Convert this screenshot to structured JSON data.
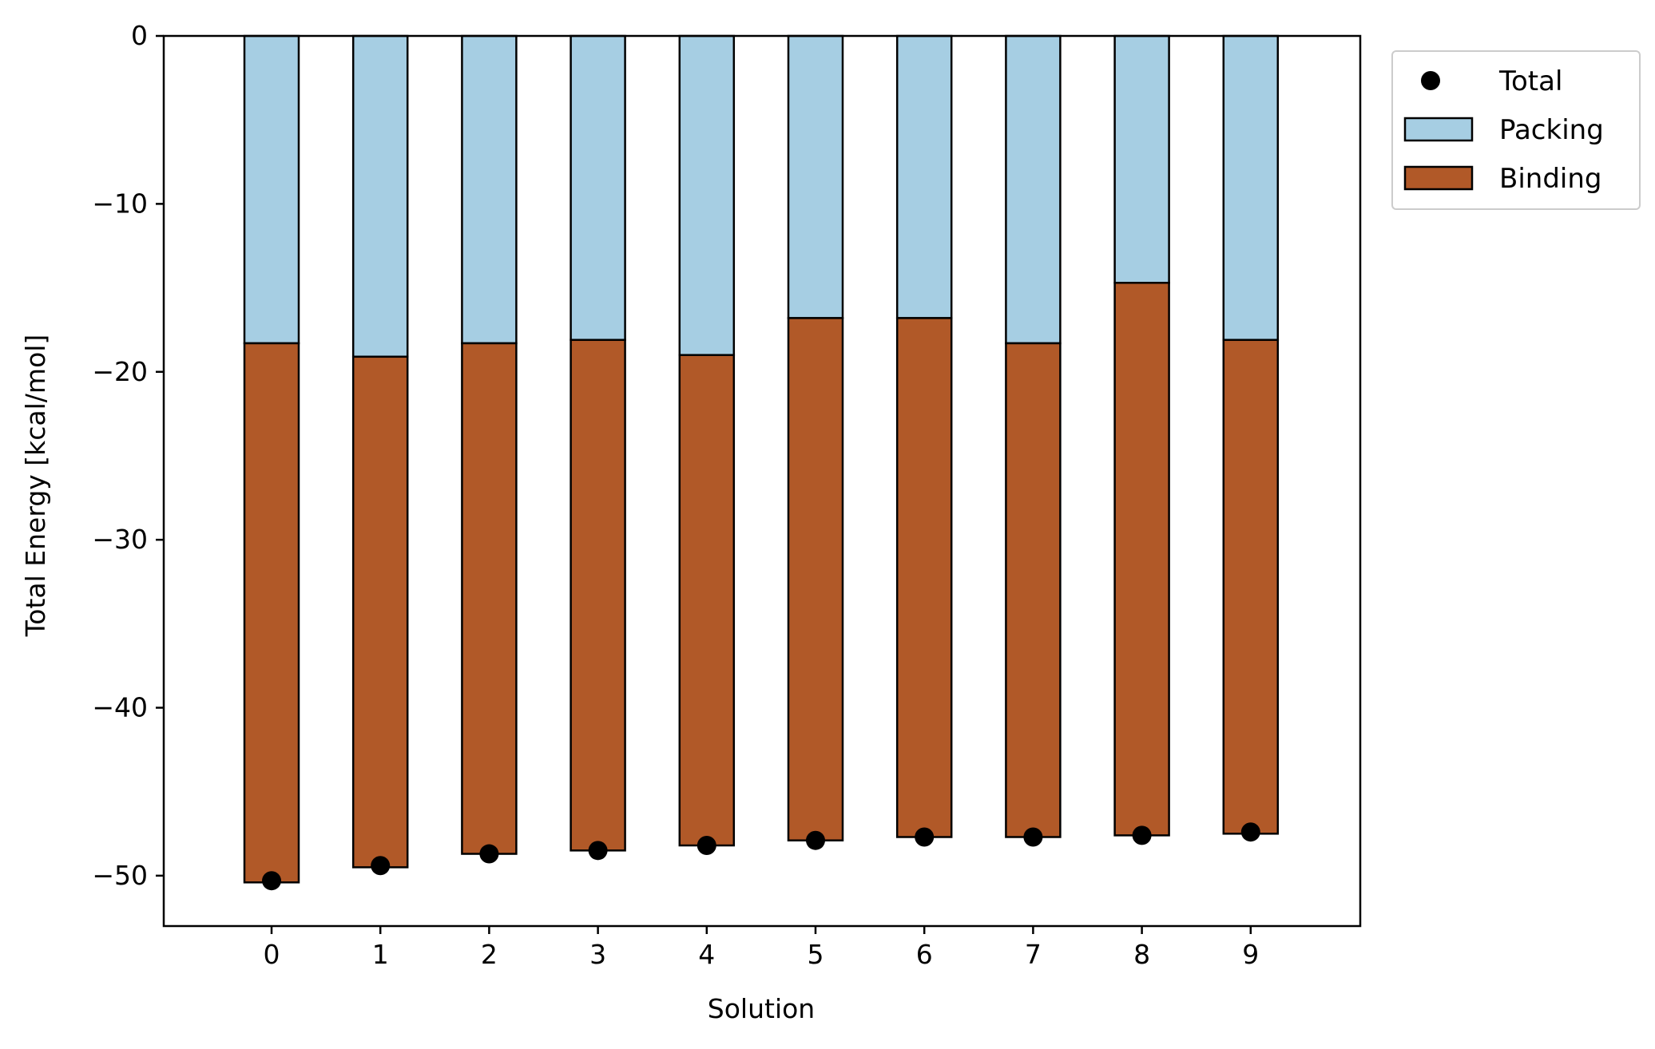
{
  "chart_data": {
    "type": "bar",
    "stacked": true,
    "title": "",
    "xlabel": "Solution",
    "ylabel": "Total Energy [kcal/mol]",
    "categories": [
      "0",
      "1",
      "2",
      "3",
      "4",
      "5",
      "6",
      "7",
      "8",
      "9"
    ],
    "ylim": [
      -53,
      0
    ],
    "yticks": [
      0,
      -10,
      -20,
      -30,
      -40,
      -50
    ],
    "ytick_labels": [
      "0",
      "−10",
      "−20",
      "−30",
      "−40",
      "−50"
    ],
    "grid": false,
    "legend_position": "outside-top-right",
    "series": [
      {
        "name": "Packing",
        "kind": "bar",
        "color": "#a6cee3",
        "values": [
          -18.3,
          -19.1,
          -18.3,
          -18.1,
          -19.0,
          -16.8,
          -16.8,
          -18.3,
          -14.7,
          -18.1
        ]
      },
      {
        "name": "Binding",
        "kind": "bar",
        "color": "#b15928",
        "values": [
          -32.1,
          -30.4,
          -30.4,
          -30.4,
          -29.2,
          -31.1,
          -30.9,
          -29.4,
          -32.9,
          -29.4
        ]
      },
      {
        "name": "Total",
        "kind": "point",
        "color": "#000000",
        "values": [
          -50.3,
          -49.4,
          -48.7,
          -48.5,
          -48.2,
          -47.9,
          -47.7,
          -47.7,
          -47.6,
          -47.4
        ]
      }
    ],
    "legend": [
      "Total",
      "Packing",
      "Binding"
    ]
  }
}
